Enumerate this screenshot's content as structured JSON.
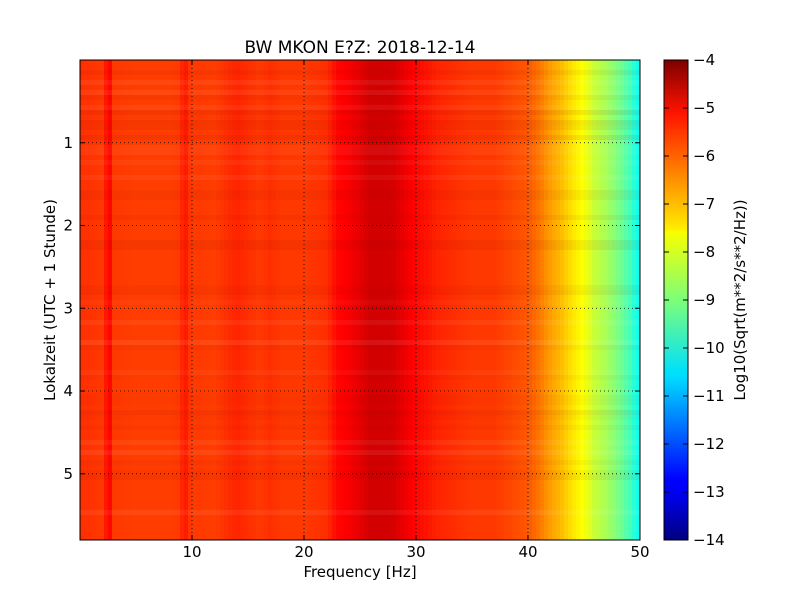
{
  "chart_data": {
    "type": "heatmap",
    "title": "BW MKON E?Z: 2018-12-14",
    "xlabel": "Frequency [Hz]",
    "ylabel": "Lokalzeit (UTC + 1 Stunde)",
    "xlim": [
      0,
      50
    ],
    "ylim": [
      0,
      5.8
    ],
    "y_inverted": true,
    "x_ticks": [
      10,
      20,
      30,
      40,
      50
    ],
    "x_tick_labels": [
      "10",
      "20",
      "30",
      "40",
      "50"
    ],
    "y_ticks": [
      1,
      2,
      3,
      4,
      5
    ],
    "y_tick_labels": [
      "1",
      "2",
      "3",
      "4",
      "5"
    ],
    "grid": true,
    "colormap": "jet",
    "colorbar": {
      "label": "Log10(Sqrt(m**2/s**2/Hz))",
      "range": [
        -14,
        -4
      ],
      "ticks": [
        -4,
        -5,
        -6,
        -7,
        -8,
        -9,
        -10,
        -11,
        -12,
        -13,
        -14
      ],
      "tick_labels": [
        "−4",
        "−5",
        "−6",
        "−7",
        "−8",
        "−9",
        "−10",
        "−11",
        "−12",
        "−13",
        "−14"
      ]
    },
    "spectrum_profile": {
      "frequency_hz": [
        0,
        2,
        2.6,
        3,
        5,
        8,
        9,
        9.3,
        9.6,
        10,
        12,
        14,
        16,
        17,
        18,
        20,
        22,
        23,
        24,
        26,
        28,
        30,
        32,
        35,
        37,
        38,
        39,
        40,
        41,
        42,
        43,
        44,
        45,
        46,
        47,
        48,
        49,
        50
      ],
      "log10_amplitude": [
        -5.7,
        -5.8,
        -5.2,
        -5.8,
        -5.85,
        -5.85,
        -5.8,
        -5.3,
        -5.7,
        -5.8,
        -5.85,
        -5.6,
        -5.8,
        -5.7,
        -5.8,
        -5.8,
        -5.7,
        -5.3,
        -5.2,
        -4.8,
        -4.85,
        -5.3,
        -5.6,
        -5.8,
        -5.8,
        -5.9,
        -6.0,
        -6.1,
        -6.4,
        -6.8,
        -7.1,
        -7.5,
        -7.8,
        -8.3,
        -8.6,
        -9.0,
        -9.5,
        -10.2
      ]
    }
  }
}
